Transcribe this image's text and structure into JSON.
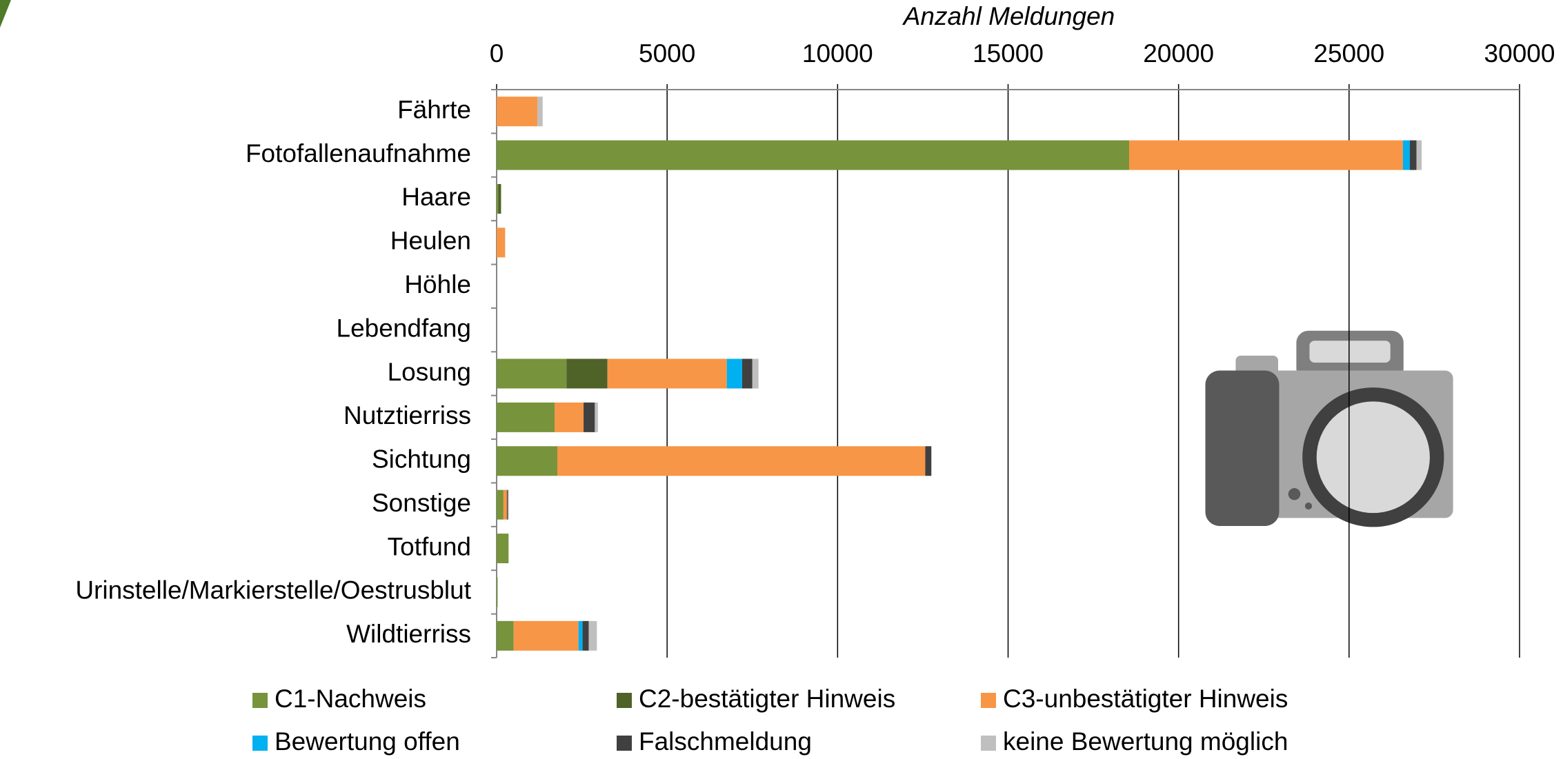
{
  "chart_data": {
    "type": "hbar_stacked",
    "xlabel": "Anzahl Meldungen",
    "categories": [
      "Fährte",
      "Fotofallenaufnahme",
      "Haare",
      "Heulen",
      "Höhle",
      "Lebendfang",
      "Losung",
      "Nutztierriss",
      "Sichtung",
      "Sonstige",
      "Totfund",
      "Urinstelle/Markierstelle/Oestrusblut",
      "Wildtierriss"
    ],
    "series": [
      {
        "name": "C1-Nachweis",
        "color": "#77933c",
        "values": [
          0,
          18550,
          50,
          0,
          0,
          0,
          2050,
          1700,
          1780,
          200,
          350,
          30,
          500
        ]
      },
      {
        "name": "C2-bestätigter Hinweis",
        "color": "#4f6228",
        "values": [
          0,
          0,
          80,
          0,
          0,
          0,
          1200,
          0,
          0,
          0,
          0,
          0,
          0
        ]
      },
      {
        "name": "C3-unbestätigter Hinweis",
        "color": "#f79646",
        "values": [
          1200,
          8030,
          0,
          250,
          0,
          0,
          3500,
          850,
          10790,
          100,
          0,
          0,
          1900
        ]
      },
      {
        "name": "Bewertung offen",
        "color": "#00b0f0",
        "values": [
          0,
          200,
          0,
          0,
          0,
          0,
          450,
          0,
          0,
          0,
          0,
          0,
          120
        ]
      },
      {
        "name": "Falschmeldung",
        "color": "#404040",
        "values": [
          0,
          200,
          0,
          0,
          0,
          0,
          300,
          330,
          180,
          30,
          0,
          0,
          180
        ]
      },
      {
        "name": "keine Bewertung möglich",
        "color": "#bfbfbf",
        "values": [
          150,
          150,
          0,
          0,
          0,
          0,
          180,
          90,
          0,
          30,
          0,
          0,
          240
        ]
      }
    ],
    "xlim": [
      0,
      30000
    ],
    "xticks": [
      0,
      5000,
      10000,
      15000,
      20000,
      25000,
      30000
    ],
    "grid": true,
    "legend": "bottom"
  }
}
